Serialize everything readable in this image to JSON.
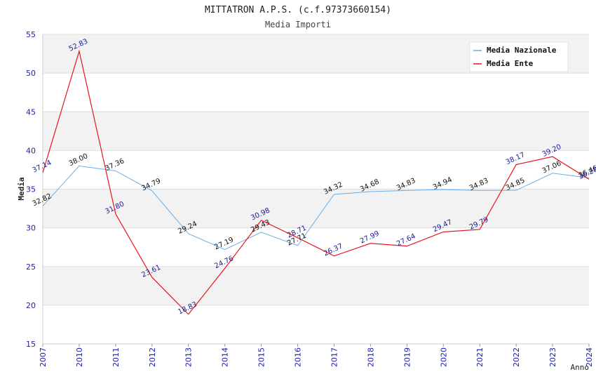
{
  "chart_data": {
    "type": "line",
    "title": "MITTATRON A.P.S. (c.f.97373660154)",
    "subtitle": "Media Importi",
    "xlabel": "Anno",
    "ylabel": "Media",
    "categories": [
      "2007",
      "2010",
      "2011",
      "2012",
      "2013",
      "2014",
      "2015",
      "2016",
      "2017",
      "2018",
      "2019",
      "2020",
      "2021",
      "2022",
      "2023",
      "2024"
    ],
    "ylim": [
      15,
      55
    ],
    "yticks": [
      15,
      20,
      25,
      30,
      35,
      40,
      45,
      50,
      55
    ],
    "grid": true,
    "legend_position": "top-right",
    "series": [
      {
        "name": "Media Nazionale",
        "color": "#6aaee8",
        "label_color": "#111111",
        "values": [
          32.82,
          38.0,
          37.36,
          34.79,
          29.24,
          27.19,
          29.43,
          27.71,
          34.32,
          34.68,
          34.83,
          34.94,
          34.83,
          34.85,
          37.06,
          36.46
        ],
        "labels": [
          "32.82",
          "38.00",
          "37.36",
          "34.79",
          "29.24",
          "27.19",
          "29.43",
          "27.71",
          "34.32",
          "34.68",
          "34.83",
          "34.94",
          "34.83",
          "34.85",
          "37.06",
          "36.46"
        ]
      },
      {
        "name": "Media Ente",
        "color": "#e8141c",
        "label_color": "#1c1c9c",
        "values": [
          37.14,
          52.83,
          31.8,
          23.61,
          18.83,
          24.76,
          30.98,
          28.71,
          26.37,
          27.99,
          27.64,
          29.47,
          29.79,
          38.17,
          39.2,
          36.28
        ],
        "labels": [
          "37.14",
          "52.83",
          "31.80",
          "23.61",
          "18.83",
          "24.76",
          "30.98",
          "28.71",
          "26.37",
          "27.99",
          "27.64",
          "29.47",
          "29.79",
          "38.17",
          "39.20",
          "36.28"
        ]
      }
    ]
  }
}
